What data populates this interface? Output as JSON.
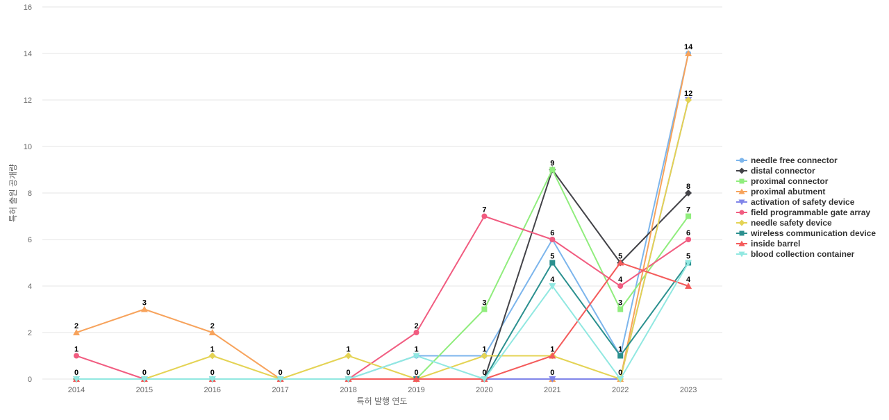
{
  "chart_data": {
    "type": "line",
    "title": "",
    "xlabel": "특허 발행 연도",
    "ylabel": "특허 출원 공개량",
    "ylim": [
      0,
      16
    ],
    "yticks": [
      0,
      2,
      4,
      6,
      8,
      10,
      12,
      14,
      16
    ],
    "grid": "horizontal",
    "legend_position": "right",
    "categories": [
      "2014",
      "2015",
      "2016",
      "2017",
      "2018",
      "2019",
      "2020",
      "2021",
      "2022",
      "2023"
    ],
    "series": [
      {
        "name": "needle free connector",
        "color": "#7cb5ec",
        "marker": "circle",
        "values": [
          0,
          0,
          0,
          0,
          0,
          1,
          1,
          6,
          1,
          14
        ]
      },
      {
        "name": "distal connector",
        "color": "#434348",
        "marker": "diamond",
        "values": [
          0,
          0,
          0,
          0,
          0,
          0,
          0,
          9,
          5,
          8
        ]
      },
      {
        "name": "proximal connector",
        "color": "#90ed7d",
        "marker": "square",
        "values": [
          0,
          0,
          0,
          0,
          0,
          0,
          3,
          9,
          3,
          7
        ]
      },
      {
        "name": "proximal abutment",
        "color": "#f7a35c",
        "marker": "triangle",
        "values": [
          2,
          3,
          2,
          0,
          0,
          0,
          0,
          0,
          0,
          14
        ]
      },
      {
        "name": "activation of safety device",
        "color": "#8085e9",
        "marker": "triangle-down",
        "values": [
          0,
          0,
          0,
          0,
          0,
          0,
          0,
          0,
          0,
          12
        ]
      },
      {
        "name": "field programmable gate array",
        "color": "#f15c80",
        "marker": "circle",
        "values": [
          1,
          0,
          0,
          0,
          0,
          2,
          7,
          6,
          4,
          6
        ]
      },
      {
        "name": "needle safety device",
        "color": "#e4d354",
        "marker": "diamond",
        "values": [
          0,
          0,
          1,
          0,
          1,
          0,
          1,
          1,
          0,
          12
        ]
      },
      {
        "name": "wireless communication device",
        "color": "#2b908f",
        "marker": "square",
        "values": [
          0,
          0,
          0,
          0,
          0,
          0,
          0,
          5,
          1,
          5
        ]
      },
      {
        "name": "inside barrel",
        "color": "#f45b5b",
        "marker": "triangle",
        "values": [
          0,
          0,
          0,
          0,
          0,
          0,
          0,
          1,
          5,
          4
        ]
      },
      {
        "name": "blood collection container",
        "color": "#91e8e1",
        "marker": "triangle-down",
        "values": [
          0,
          0,
          0,
          0,
          0,
          1,
          0,
          4,
          0,
          5
        ]
      }
    ],
    "data_labels": [
      {
        "category": "2014",
        "value": 2,
        "text": "2"
      },
      {
        "category": "2014",
        "value": 1,
        "text": "1"
      },
      {
        "category": "2014",
        "value": 0,
        "text": "0"
      },
      {
        "category": "2015",
        "value": 3,
        "text": "3"
      },
      {
        "category": "2015",
        "value": 0,
        "text": "0"
      },
      {
        "category": "2016",
        "value": 2,
        "text": "2"
      },
      {
        "category": "2016",
        "value": 1,
        "text": "1"
      },
      {
        "category": "2016",
        "value": 0,
        "text": "0"
      },
      {
        "category": "2017",
        "value": 0,
        "text": "0"
      },
      {
        "category": "2018",
        "value": 1,
        "text": "1"
      },
      {
        "category": "2018",
        "value": 0,
        "text": "0"
      },
      {
        "category": "2019",
        "value": 2,
        "text": "2"
      },
      {
        "category": "2019",
        "value": 1,
        "text": "1"
      },
      {
        "category": "2019",
        "value": 0,
        "text": "0"
      },
      {
        "category": "2020",
        "value": 7,
        "text": "7"
      },
      {
        "category": "2020",
        "value": 3,
        "text": "3"
      },
      {
        "category": "2020",
        "value": 1,
        "text": "1"
      },
      {
        "category": "2020",
        "value": 0,
        "text": "0"
      },
      {
        "category": "2021",
        "value": 9,
        "text": "9"
      },
      {
        "category": "2021",
        "value": 6,
        "text": "6"
      },
      {
        "category": "2021",
        "value": 5,
        "text": "5"
      },
      {
        "category": "2021",
        "value": 4,
        "text": "4"
      },
      {
        "category": "2021",
        "value": 1,
        "text": "1"
      },
      {
        "category": "2021",
        "value": 0,
        "text": "0"
      },
      {
        "category": "2022",
        "value": 5,
        "text": "5"
      },
      {
        "category": "2022",
        "value": 4,
        "text": "4"
      },
      {
        "category": "2022",
        "value": 3,
        "text": "3"
      },
      {
        "category": "2022",
        "value": 1,
        "text": "1"
      },
      {
        "category": "2022",
        "value": 0,
        "text": "0"
      },
      {
        "category": "2023",
        "value": 14,
        "text": "14"
      },
      {
        "category": "2023",
        "value": 12,
        "text": "12"
      },
      {
        "category": "2023",
        "value": 8,
        "text": "8"
      },
      {
        "category": "2023",
        "value": 7,
        "text": "7"
      },
      {
        "category": "2023",
        "value": 6,
        "text": "6"
      },
      {
        "category": "2023",
        "value": 5,
        "text": "5"
      },
      {
        "category": "2023",
        "value": 4,
        "text": "4"
      }
    ]
  }
}
